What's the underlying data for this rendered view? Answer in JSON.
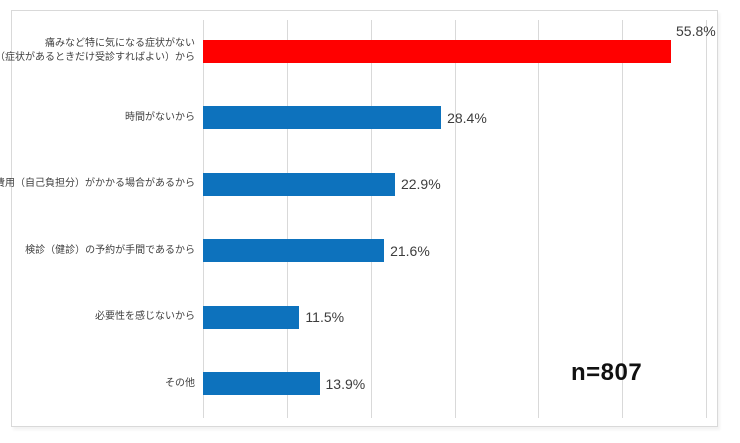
{
  "chart_data": {
    "type": "bar",
    "orientation": "horizontal",
    "title": "",
    "categories": [
      "痛みなど特に気になる症状がない（症状があるときだけ受診すればよい）から",
      "時間がないから",
      "費用（自己負担分）がかかる場合があるから",
      "検診（健診）の予約が手間であるから",
      "必要性を感じないから",
      "その他"
    ],
    "values": [
      55.8,
      28.4,
      22.9,
      21.6,
      11.5,
      13.9
    ],
    "value_labels": [
      "55.8%",
      "28.4%",
      "22.9%",
      "21.6%",
      "11.5%",
      "13.9%"
    ],
    "xlim": [
      0,
      60
    ],
    "gridline_step": 10,
    "grid": true,
    "legend": false,
    "axis_tick_labels_visible": false,
    "n_label": "n=807",
    "items": [
      {
        "category_lines": [
          "痛みなど特に気になる症状がない",
          "（症状があるときだけ受診すればよい）から"
        ],
        "value": 55.8,
        "value_label": "55.8%",
        "highlight": true,
        "value_label_position": "top-right"
      },
      {
        "category_lines": [
          "時間がないから"
        ],
        "value": 28.4,
        "value_label": "28.4%",
        "highlight": false,
        "value_label_position": "end"
      },
      {
        "category_lines": [
          "費用（自己負担分）がかかる場合があるから"
        ],
        "value": 22.9,
        "value_label": "22.9%",
        "highlight": false,
        "value_label_position": "end"
      },
      {
        "category_lines": [
          "検診（健診）の予約が手間であるから"
        ],
        "value": 21.6,
        "value_label": "21.6%",
        "highlight": false,
        "value_label_position": "end"
      },
      {
        "category_lines": [
          "必要性を感じないから"
        ],
        "value": 11.5,
        "value_label": "11.5%",
        "highlight": false,
        "value_label_position": "end"
      },
      {
        "category_lines": [
          "その他"
        ],
        "value": 13.9,
        "value_label": "13.9%",
        "highlight": false,
        "value_label_position": "end"
      }
    ],
    "colors": {
      "highlight_bar": "#ff0000",
      "default_bar": "#0d72bd",
      "gridline": "#d9d9d9",
      "panel_border": "#d9d9d9",
      "category_text": "#404040",
      "value_text": "#3d3d3d",
      "n_text": "#111111"
    }
  }
}
